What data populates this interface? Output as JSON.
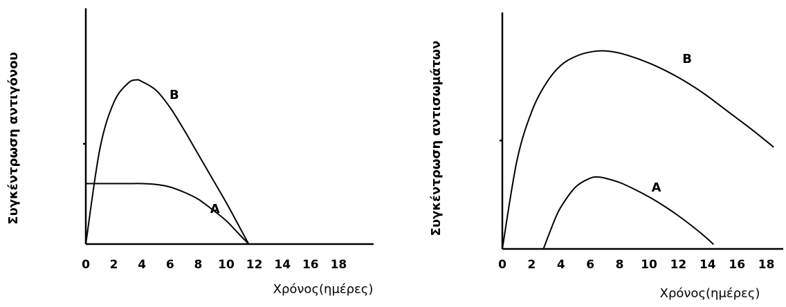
{
  "chart_data": [
    {
      "type": "line",
      "title": "",
      "xlabel": "Χρόνος(ημέρες)",
      "ylabel": "Συγκέντρωση αντιγόνου",
      "xticks": [
        0,
        2,
        4,
        6,
        8,
        10,
        12,
        14,
        16,
        18
      ],
      "xlim": [
        0,
        19
      ],
      "ylim": [
        0,
        10
      ],
      "series": [
        {
          "name": "A",
          "x": [
            0,
            1,
            2,
            3,
            4,
            5,
            6,
            7,
            8,
            9,
            10,
            11,
            11.6
          ],
          "y": [
            3.5,
            3.5,
            3.5,
            3.5,
            3.5,
            3.45,
            3.3,
            3.0,
            2.6,
            2.0,
            1.35,
            0.5,
            0
          ]
        },
        {
          "name": "B",
          "x": [
            0,
            1,
            2,
            3,
            3.6,
            4,
            5,
            6,
            7,
            8,
            9,
            10,
            11,
            11.6
          ],
          "y": [
            0,
            5.5,
            8.2,
            9.3,
            9.5,
            9.4,
            8.9,
            7.9,
            6.6,
            5.2,
            3.8,
            2.4,
            0.9,
            0
          ]
        }
      ]
    },
    {
      "type": "line",
      "title": "",
      "xlabel": "Χρόνος(ημέρες)",
      "ylabel": "Συγκέντρωση αντισωμάτων",
      "xticks": [
        0,
        2,
        4,
        6,
        8,
        10,
        12,
        14,
        16,
        18
      ],
      "xlim": [
        0,
        18.5
      ],
      "ylim": [
        0,
        10
      ],
      "series": [
        {
          "name": "A",
          "x": [
            2.8,
            3.5,
            4,
            5,
            6,
            6.5,
            7,
            8,
            9,
            10,
            11,
            12,
            13,
            14,
            14.4
          ],
          "y": [
            0,
            1.2,
            1.9,
            2.8,
            3.2,
            3.25,
            3.2,
            3.0,
            2.7,
            2.35,
            1.95,
            1.5,
            1.0,
            0.45,
            0.2
          ]
        },
        {
          "name": "B",
          "x": [
            0,
            1,
            2,
            3,
            4,
            5,
            6,
            7,
            8,
            9,
            10,
            11,
            12,
            13,
            14,
            15,
            16,
            17,
            18.5
          ],
          "y": [
            0,
            4.0,
            6.2,
            7.5,
            8.3,
            8.7,
            8.9,
            8.95,
            8.85,
            8.65,
            8.4,
            8.1,
            7.75,
            7.35,
            6.9,
            6.4,
            5.9,
            5.4,
            4.6
          ]
        }
      ]
    }
  ]
}
